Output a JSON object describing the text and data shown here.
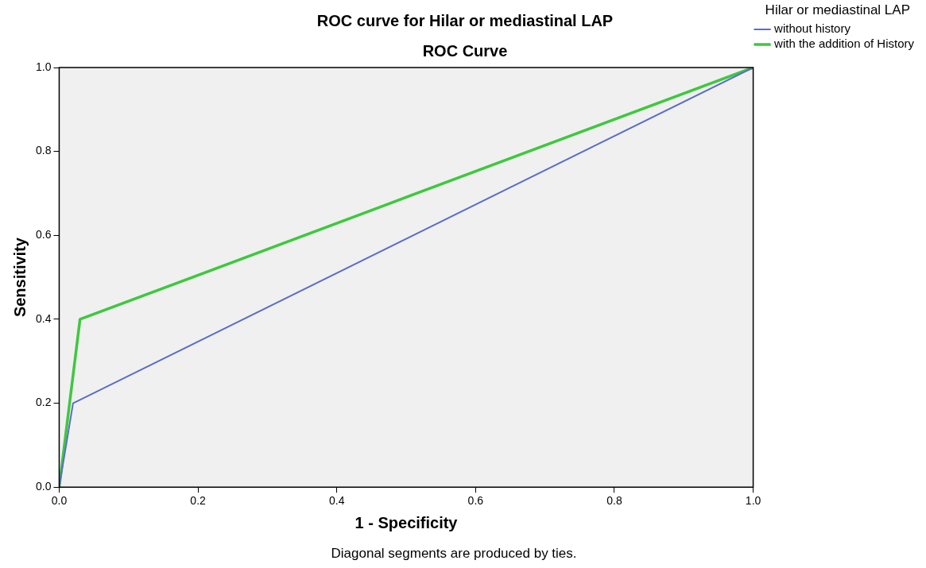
{
  "chart_data": {
    "type": "line",
    "title": "ROC curve for Hilar or mediastinal LAP",
    "subtitle": "ROC Curve",
    "xlabel": "1 - Specificity",
    "ylabel": "Sensitivity",
    "legend_title": "Hilar or mediastinal LAP",
    "legend": "top right",
    "marker": "none",
    "line_style": "solid",
    "grid": false,
    "xlim": [
      0,
      1
    ],
    "ylim": [
      0,
      1
    ],
    "xticks": [
      {
        "value": 0,
        "label": "0.0"
      },
      {
        "value": 0.2,
        "label": "0.2"
      },
      {
        "value": 0.4,
        "label": "0.4"
      },
      {
        "value": 0.6,
        "label": "0.6"
      },
      {
        "value": 0.8,
        "label": "0.8"
      },
      {
        "value": 1,
        "label": "1.0"
      }
    ],
    "yticks": [
      {
        "value": 0,
        "label": "0.0"
      },
      {
        "value": 0.2,
        "label": "0.2"
      },
      {
        "value": 0.4,
        "label": "0.4"
      },
      {
        "value": 0.6,
        "label": "0.6"
      },
      {
        "value": 0.8,
        "label": "0.8"
      },
      {
        "value": 1,
        "label": "1.0"
      }
    ],
    "series": [
      {
        "name": "without history",
        "color": "#5b6ec8",
        "x": [
          0,
          0.02,
          1
        ],
        "values": [
          0,
          0.2,
          1
        ]
      },
      {
        "name": "with the addition of History",
        "color": "#3ec83e",
        "x": [
          0,
          0.03,
          1
        ],
        "values": [
          0,
          0.4,
          1
        ]
      }
    ],
    "annotations": [
      "Diagonal segments are produced by ties."
    ]
  }
}
